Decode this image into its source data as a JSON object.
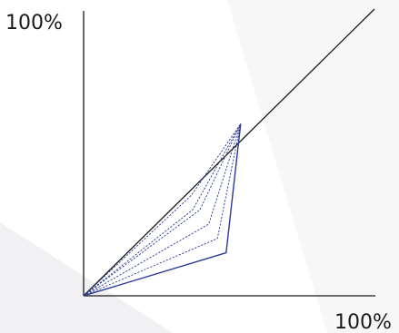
{
  "colors": {
    "background": "#ffffff",
    "panel_light": "#f7f7f8",
    "panel_mid": "#f1f1f3",
    "axis": "#1a1a1a",
    "series": "#2b3a93"
  },
  "chart_data": {
    "type": "line",
    "title": "",
    "xlabel": "",
    "ylabel": "",
    "x_max_label": "100%",
    "y_max_label": "100%",
    "xlim": [
      0,
      100
    ],
    "ylim": [
      0,
      100
    ],
    "grid": false,
    "legend": "none",
    "reference_line": {
      "name": "",
      "x": [
        0,
        100
      ],
      "y": [
        0,
        100
      ]
    },
    "series": [
      {
        "style": "solid",
        "x": [
          0,
          49,
          54
        ],
        "y": [
          0,
          15,
          60
        ]
      },
      {
        "style": "dashed",
        "x": [
          0,
          46,
          54
        ],
        "y": [
          0,
          20,
          60
        ]
      },
      {
        "style": "dashed",
        "x": [
          0,
          43,
          54
        ],
        "y": [
          0,
          25,
          60
        ]
      },
      {
        "style": "dashed",
        "x": [
          0,
          40,
          54
        ],
        "y": [
          0,
          30,
          60
        ]
      },
      {
        "style": "dashed",
        "x": [
          0,
          37,
          54
        ],
        "y": [
          0,
          35,
          60
        ]
      },
      {
        "style": "dashed",
        "x": [
          0,
          37.5,
          54
        ],
        "y": [
          0,
          30,
          60
        ]
      }
    ]
  }
}
